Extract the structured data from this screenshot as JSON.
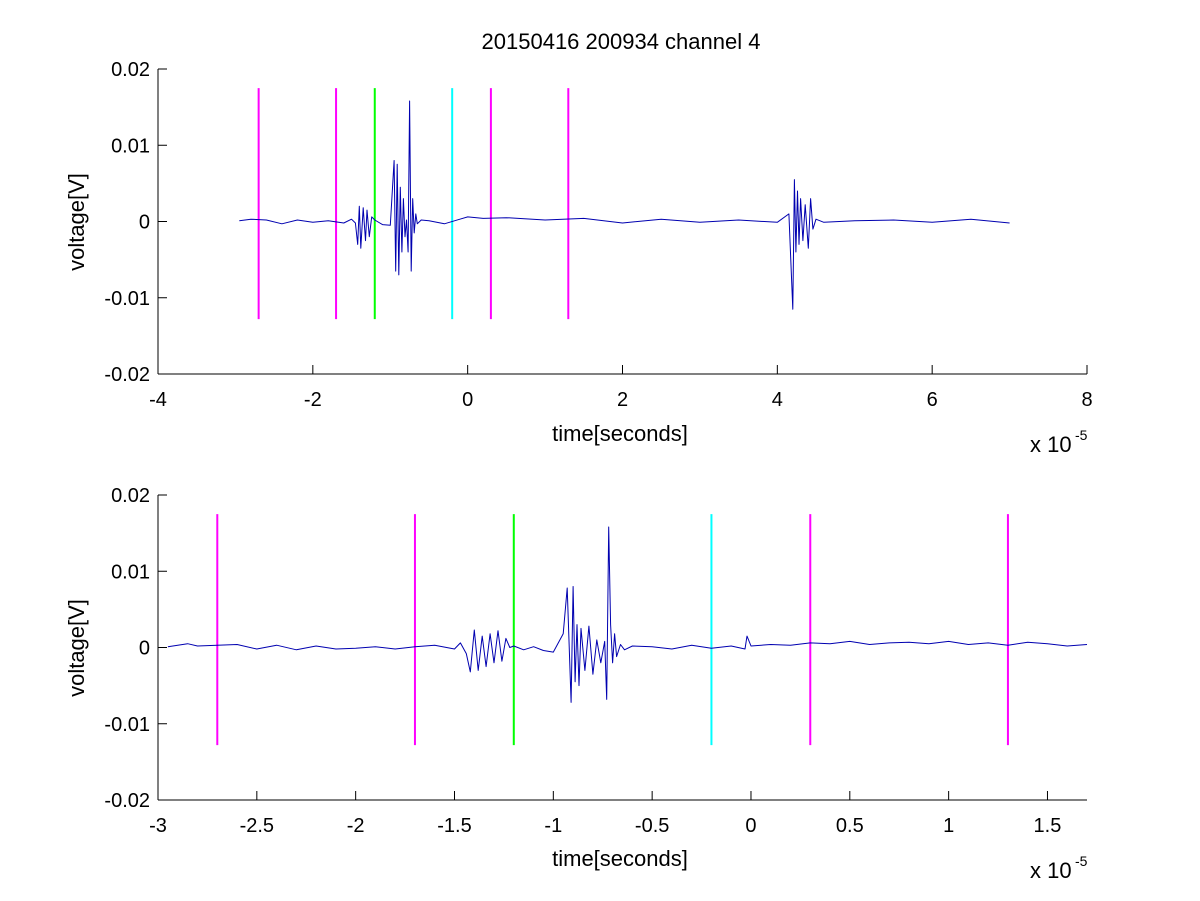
{
  "figure_title": "20150416 200934 channel 4",
  "colors": {
    "signal": "#0000b0",
    "magenta": "#ff00ff",
    "green": "#00ff00",
    "cyan": "#00ffff",
    "axis": "#000000"
  },
  "chart_data": [
    {
      "type": "line",
      "title": "20150416 200934 channel 4",
      "xlabel": "time[seconds]",
      "ylabel": "voltage[V]",
      "x_exponent_base": "x 10",
      "x_exponent_power": "-5",
      "x_scale_note": "x values in units of 1e-5 seconds",
      "xlim": [
        -4,
        8
      ],
      "ylim": [
        -0.02,
        0.02
      ],
      "x_ticks": [
        -4,
        -2,
        0,
        2,
        4,
        6,
        8
      ],
      "x_tick_labels": [
        "-4",
        "-2",
        "0",
        "2",
        "4",
        "6",
        "8"
      ],
      "y_ticks": [
        0.02,
        0.01,
        0,
        -0.01,
        -0.02
      ],
      "y_tick_labels": [
        "0.02",
        "0.01",
        "0",
        "-0.01",
        "-0.02"
      ],
      "grid": false,
      "vertical_markers": [
        {
          "x": -2.7,
          "ymin": -0.0128,
          "ymax": 0.0175,
          "color": "magenta"
        },
        {
          "x": -1.7,
          "ymin": -0.0128,
          "ymax": 0.0175,
          "color": "magenta"
        },
        {
          "x": -1.2,
          "ymin": -0.0128,
          "ymax": 0.0175,
          "color": "green"
        },
        {
          "x": -0.2,
          "ymin": -0.0128,
          "ymax": 0.0175,
          "color": "cyan"
        },
        {
          "x": 0.3,
          "ymin": -0.0128,
          "ymax": 0.0175,
          "color": "magenta"
        },
        {
          "x": 1.3,
          "ymin": -0.0128,
          "ymax": 0.0175,
          "color": "magenta"
        }
      ],
      "series": [
        {
          "x": [
            -2.95,
            -2.8,
            -2.6,
            -2.4,
            -2.2,
            -2.0,
            -1.8,
            -1.6,
            -1.5,
            -1.45,
            -1.42,
            -1.4,
            -1.38,
            -1.35,
            -1.32,
            -1.3,
            -1.27,
            -1.24,
            -1.2,
            -1.1,
            -1.0,
            -0.95,
            -0.93,
            -0.91,
            -0.89,
            -0.87,
            -0.85,
            -0.83,
            -0.81,
            -0.79,
            -0.77,
            -0.75,
            -0.73,
            -0.71,
            -0.69,
            -0.67,
            -0.65,
            -0.6,
            -0.5,
            -0.3,
            -0.1,
            0.0,
            0.2,
            0.5,
            1.0,
            1.5,
            2.0,
            2.5,
            3.0,
            3.5,
            4.0,
            4.15,
            4.2,
            4.22,
            4.24,
            4.26,
            4.28,
            4.3,
            4.33,
            4.36,
            4.4,
            4.43,
            4.46,
            4.5,
            4.6,
            5.0,
            5.5,
            6.0,
            6.5,
            7.0
          ],
          "y": [
            0.0001,
            0.0003,
            0.0002,
            -0.0003,
            0.0002,
            -0.0001,
            0.0001,
            -0.0002,
            0.0003,
            -0.0002,
            -0.003,
            0.002,
            -0.0035,
            0.0018,
            -0.0025,
            0.0015,
            -0.002,
            0.0006,
            0.0002,
            -0.0004,
            -0.0005,
            0.008,
            -0.0065,
            0.0075,
            -0.007,
            0.0045,
            -0.004,
            0.003,
            -0.002,
            0.0002,
            -0.004,
            0.0158,
            -0.0065,
            0.003,
            -0.0015,
            0.001,
            -0.0003,
            0.0002,
            0.0001,
            -0.0003,
            0.0003,
            0.0006,
            0.0004,
            0.0005,
            0.0002,
            0.0004,
            -0.0002,
            0.0003,
            -0.0001,
            0.0002,
            -0.0001,
            0.001,
            -0.0115,
            0.0055,
            -0.004,
            0.004,
            -0.003,
            0.003,
            -0.0025,
            0.0022,
            -0.0035,
            0.003,
            -0.001,
            0.0003,
            -0.0001,
            0.0001,
            0.0002,
            -0.0001,
            0.0003,
            -0.0002
          ]
        }
      ]
    },
    {
      "type": "line",
      "title": "",
      "xlabel": "time[seconds]",
      "ylabel": "voltage[V]",
      "x_exponent_base": "x 10",
      "x_exponent_power": "-5",
      "x_scale_note": "x values in units of 1e-5 seconds",
      "xlim": [
        -3.0,
        1.7
      ],
      "ylim": [
        -0.02,
        0.02
      ],
      "x_ticks": [
        -3,
        -2.5,
        -2,
        -1.5,
        -1,
        -0.5,
        0,
        0.5,
        1,
        1.5
      ],
      "x_tick_labels": [
        "-3",
        "-2.5",
        "-2",
        "-1.5",
        "-1",
        "-0.5",
        "0",
        "0.5",
        "1",
        "1.5"
      ],
      "y_ticks": [
        0.02,
        0.01,
        0,
        -0.01,
        -0.02
      ],
      "y_tick_labels": [
        "0.02",
        "0.01",
        "0",
        "-0.01",
        "-0.02"
      ],
      "grid": false,
      "vertical_markers": [
        {
          "x": -2.7,
          "ymin": -0.0128,
          "ymax": 0.0175,
          "color": "magenta"
        },
        {
          "x": -1.7,
          "ymin": -0.0128,
          "ymax": 0.0175,
          "color": "magenta"
        },
        {
          "x": -1.2,
          "ymin": -0.0128,
          "ymax": 0.0175,
          "color": "green"
        },
        {
          "x": -0.2,
          "ymin": -0.0128,
          "ymax": 0.0175,
          "color": "cyan"
        },
        {
          "x": 0.3,
          "ymin": -0.0128,
          "ymax": 0.0175,
          "color": "magenta"
        },
        {
          "x": 1.3,
          "ymin": -0.0128,
          "ymax": 0.0175,
          "color": "magenta"
        }
      ],
      "series": [
        {
          "x": [
            -2.95,
            -2.85,
            -2.8,
            -2.7,
            -2.6,
            -2.5,
            -2.4,
            -2.3,
            -2.2,
            -2.1,
            -2.0,
            -1.9,
            -1.8,
            -1.7,
            -1.6,
            -1.5,
            -1.47,
            -1.44,
            -1.42,
            -1.4,
            -1.38,
            -1.36,
            -1.34,
            -1.32,
            -1.3,
            -1.28,
            -1.26,
            -1.24,
            -1.22,
            -1.2,
            -1.15,
            -1.1,
            -1.05,
            -1.0,
            -0.95,
            -0.93,
            -0.91,
            -0.9,
            -0.89,
            -0.88,
            -0.87,
            -0.86,
            -0.84,
            -0.82,
            -0.8,
            -0.78,
            -0.76,
            -0.74,
            -0.73,
            -0.72,
            -0.71,
            -0.7,
            -0.69,
            -0.68,
            -0.66,
            -0.64,
            -0.6,
            -0.5,
            -0.4,
            -0.3,
            -0.2,
            -0.1,
            -0.03,
            -0.02,
            0.0,
            0.1,
            0.2,
            0.3,
            0.4,
            0.5,
            0.6,
            0.7,
            0.8,
            0.9,
            1.0,
            1.1,
            1.2,
            1.3,
            1.4,
            1.5,
            1.6,
            1.7
          ],
          "y": [
            0.0001,
            0.0005,
            0.0002,
            0.0003,
            0.0004,
            -0.0002,
            0.0003,
            -0.0003,
            0.0002,
            -0.0002,
            -0.0001,
            0.0001,
            -0.0002,
            0.0001,
            0.0003,
            -0.0002,
            0.0006,
            -0.0008,
            -0.0032,
            0.0023,
            -0.003,
            0.0015,
            -0.0025,
            0.0018,
            -0.002,
            0.0022,
            -0.0018,
            0.0012,
            0.0,
            0.0002,
            -0.0003,
            0.0001,
            -0.0004,
            -0.0006,
            0.0018,
            0.0078,
            -0.0072,
            0.008,
            -0.0045,
            0.003,
            -0.005,
            0.0025,
            -0.003,
            0.0028,
            -0.0035,
            0.001,
            -0.002,
            0.0008,
            -0.0068,
            0.0158,
            0.003,
            -0.002,
            0.0018,
            -0.0012,
            0.0004,
            -0.0003,
            0.0002,
            0.0001,
            -0.0002,
            0.0003,
            -0.0001,
            0.0002,
            -0.0002,
            0.0015,
            0.0002,
            0.0004,
            0.0003,
            0.0006,
            0.0005,
            0.0008,
            0.0004,
            0.0006,
            0.0007,
            0.0005,
            0.0008,
            0.0004,
            0.0006,
            0.0003,
            0.0007,
            0.0005,
            0.0002,
            0.0004
          ]
        }
      ]
    }
  ]
}
